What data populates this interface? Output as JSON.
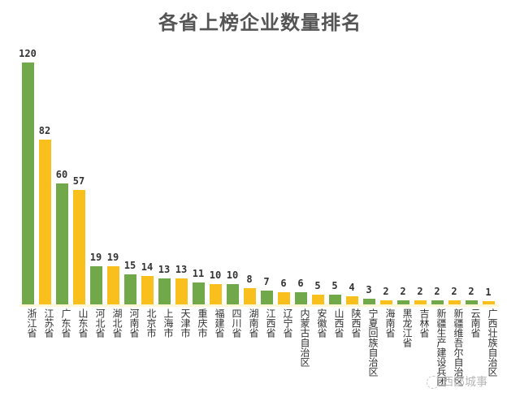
{
  "chart_data": {
    "type": "bar",
    "title": "各省上榜企业数量排名",
    "xlabel": "",
    "ylabel": "",
    "ylim": [
      0,
      120
    ],
    "grid": false,
    "legend": null,
    "colors": {
      "green": "#70a84a",
      "yellow": "#f9bf1d"
    },
    "categories": [
      "浙江省",
      "江苏省",
      "广东省",
      "山东省",
      "河北省",
      "湖北省",
      "河南省",
      "北京市",
      "上海市",
      "天津市",
      "重庆市",
      "福建省",
      "四川省",
      "湖南省",
      "江西省",
      "辽宁省",
      "内蒙古自治区",
      "安徽省",
      "山西省",
      "陕西省",
      "宁夏回族自治区",
      "海南省",
      "黑龙江省",
      "吉林省",
      "新疆生产建设兵团",
      "新疆维吾尔自治区",
      "云南省",
      "广西壮族自治区"
    ],
    "values": [
      120,
      82,
      60,
      57,
      19,
      19,
      15,
      14,
      13,
      13,
      11,
      10,
      10,
      8,
      7,
      6,
      6,
      5,
      5,
      4,
      3,
      2,
      2,
      2,
      2,
      2,
      2,
      1
    ],
    "bar_colors": [
      "green",
      "yellow",
      "green",
      "yellow",
      "green",
      "yellow",
      "green",
      "yellow",
      "green",
      "yellow",
      "green",
      "yellow",
      "green",
      "yellow",
      "green",
      "yellow",
      "green",
      "yellow",
      "green",
      "yellow",
      "green",
      "yellow",
      "green",
      "yellow",
      "green",
      "yellow",
      "green",
      "yellow"
    ]
  },
  "watermark": "西部城事"
}
